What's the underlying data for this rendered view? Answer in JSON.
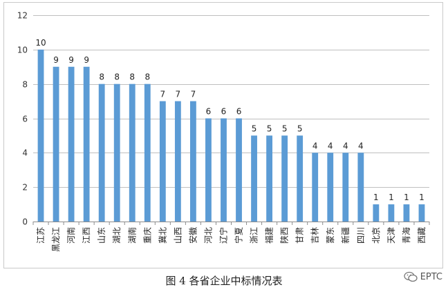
{
  "chart_data": {
    "type": "bar",
    "categories": [
      "江苏",
      "黑龙江",
      "河南",
      "江西",
      "山东",
      "湖北",
      "湖南",
      "重庆",
      "冀北",
      "山西",
      "安徽",
      "河北",
      "辽宁",
      "宁夏",
      "浙江",
      "福建",
      "陕西",
      "甘肃",
      "吉林",
      "蒙东",
      "新疆",
      "四川",
      "北京",
      "天津",
      "青海",
      "西藏"
    ],
    "values": [
      10,
      9,
      9,
      9,
      8,
      8,
      8,
      8,
      7,
      7,
      7,
      6,
      6,
      6,
      5,
      5,
      5,
      5,
      4,
      4,
      4,
      4,
      1,
      1,
      1,
      1
    ],
    "ylim": [
      0,
      12
    ],
    "yticks": [
      0,
      2,
      4,
      6,
      8,
      10,
      12
    ],
    "grid": true,
    "legend": "none",
    "bar_color": "#5b9bd5",
    "data_labels": true
  },
  "caption": "图 4  各省企业中标情况表",
  "watermark": {
    "text": "EPTC",
    "icon": "wechat-icon"
  }
}
